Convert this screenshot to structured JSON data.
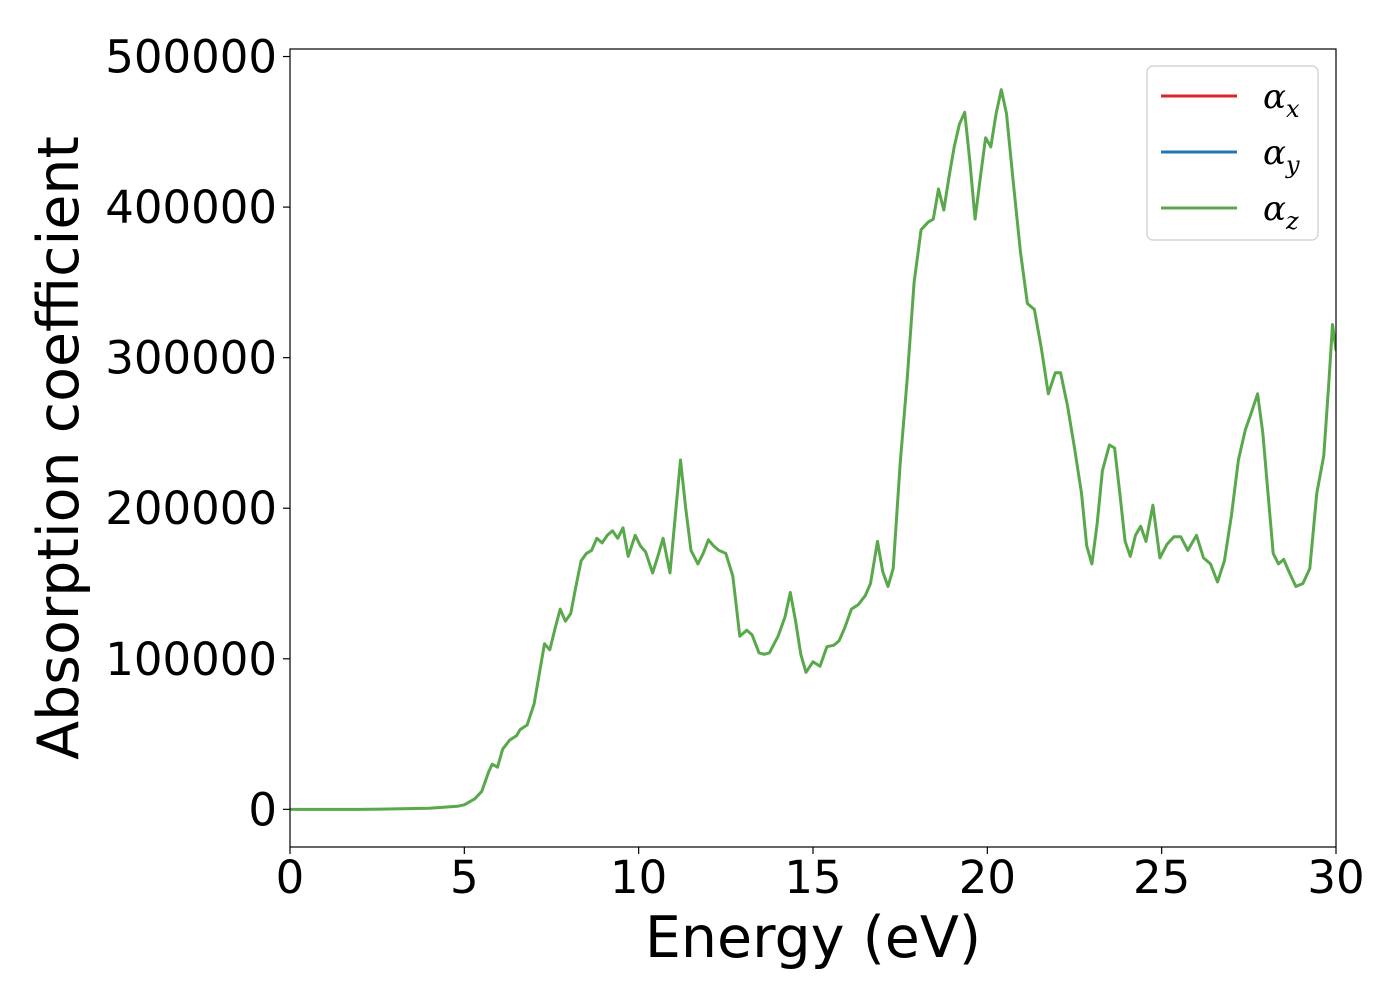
{
  "chart_data": {
    "type": "line",
    "title": "",
    "xlabel": "Energy (eV)",
    "ylabel": "Absorption coefficient",
    "xlim": [
      0,
      30
    ],
    "ylim": [
      -25000,
      505000
    ],
    "xticks": [
      0,
      5,
      10,
      15,
      20,
      25,
      30
    ],
    "yticks": [
      0,
      100000,
      200000,
      300000,
      400000,
      500000
    ],
    "xtick_labels": [
      "0",
      "5",
      "10",
      "15",
      "20",
      "25",
      "30"
    ],
    "ytick_labels": [
      "0",
      "100000",
      "200000",
      "300000",
      "400000",
      "500000"
    ],
    "grid": false,
    "legend_position": "top-right",
    "legend": [
      {
        "symbol": "α",
        "sub": "x",
        "color": "#d62728"
      },
      {
        "symbol": "α",
        "sub": "y",
        "color": "#1f77b4"
      },
      {
        "symbol": "α",
        "sub": "z",
        "color": "#59a84b"
      }
    ],
    "series": [
      {
        "color": "#59a84b",
        "points": [
          [
            0,
            0
          ],
          [
            1,
            0
          ],
          [
            2,
            0
          ],
          [
            3,
            300
          ],
          [
            4,
            800
          ],
          [
            4.8,
            2000
          ],
          [
            5.0,
            3000
          ],
          [
            5.3,
            7000
          ],
          [
            5.5,
            12000
          ],
          [
            5.7,
            25000
          ],
          [
            5.8,
            30000
          ],
          [
            5.95,
            28000
          ],
          [
            6.1,
            40000
          ],
          [
            6.3,
            46000
          ],
          [
            6.5,
            49000
          ],
          [
            6.6,
            53000
          ],
          [
            6.8,
            56000
          ],
          [
            7.0,
            70000
          ],
          [
            7.15,
            90000
          ],
          [
            7.3,
            110000
          ],
          [
            7.45,
            106000
          ],
          [
            7.6,
            120000
          ],
          [
            7.75,
            133000
          ],
          [
            7.9,
            125000
          ],
          [
            8.05,
            130000
          ],
          [
            8.2,
            148000
          ],
          [
            8.35,
            165000
          ],
          [
            8.5,
            170000
          ],
          [
            8.65,
            172000
          ],
          [
            8.8,
            180000
          ],
          [
            8.95,
            177000
          ],
          [
            9.1,
            182000
          ],
          [
            9.25,
            185000
          ],
          [
            9.4,
            180000
          ],
          [
            9.55,
            187000
          ],
          [
            9.7,
            168000
          ],
          [
            9.9,
            182000
          ],
          [
            10.05,
            175000
          ],
          [
            10.2,
            171000
          ],
          [
            10.4,
            157000
          ],
          [
            10.55,
            168000
          ],
          [
            10.7,
            180000
          ],
          [
            10.9,
            157000
          ],
          [
            11.05,
            195000
          ],
          [
            11.2,
            232000
          ],
          [
            11.35,
            200000
          ],
          [
            11.5,
            172000
          ],
          [
            11.7,
            163000
          ],
          [
            11.85,
            170000
          ],
          [
            12.0,
            179000
          ],
          [
            12.15,
            175000
          ],
          [
            12.3,
            172000
          ],
          [
            12.5,
            170000
          ],
          [
            12.7,
            155000
          ],
          [
            12.9,
            115000
          ],
          [
            13.1,
            119000
          ],
          [
            13.25,
            116000
          ],
          [
            13.45,
            104000
          ],
          [
            13.6,
            103000
          ],
          [
            13.75,
            104000
          ],
          [
            14.0,
            115000
          ],
          [
            14.2,
            128000
          ],
          [
            14.35,
            144000
          ],
          [
            14.5,
            125000
          ],
          [
            14.65,
            103000
          ],
          [
            14.8,
            91000
          ],
          [
            15.0,
            98000
          ],
          [
            15.2,
            95000
          ],
          [
            15.4,
            108000
          ],
          [
            15.6,
            109000
          ],
          [
            15.75,
            112000
          ],
          [
            15.9,
            120000
          ],
          [
            16.1,
            133000
          ],
          [
            16.3,
            136000
          ],
          [
            16.5,
            142000
          ],
          [
            16.65,
            150000
          ],
          [
            16.85,
            178000
          ],
          [
            17.0,
            158000
          ],
          [
            17.15,
            148000
          ],
          [
            17.3,
            160000
          ],
          [
            17.5,
            230000
          ],
          [
            17.7,
            285000
          ],
          [
            17.9,
            350000
          ],
          [
            18.1,
            385000
          ],
          [
            18.3,
            390000
          ],
          [
            18.45,
            392000
          ],
          [
            18.6,
            412000
          ],
          [
            18.75,
            398000
          ],
          [
            18.9,
            420000
          ],
          [
            19.05,
            440000
          ],
          [
            19.2,
            455000
          ],
          [
            19.35,
            463000
          ],
          [
            19.5,
            430000
          ],
          [
            19.65,
            392000
          ],
          [
            19.8,
            420000
          ],
          [
            19.95,
            446000
          ],
          [
            20.1,
            440000
          ],
          [
            20.25,
            462000
          ],
          [
            20.4,
            478000
          ],
          [
            20.55,
            462000
          ],
          [
            20.75,
            415000
          ],
          [
            20.95,
            370000
          ],
          [
            21.15,
            336000
          ],
          [
            21.35,
            332000
          ],
          [
            21.55,
            306000
          ],
          [
            21.75,
            276000
          ],
          [
            21.95,
            290000
          ],
          [
            22.1,
            290000
          ],
          [
            22.3,
            268000
          ],
          [
            22.5,
            240000
          ],
          [
            22.7,
            210000
          ],
          [
            22.85,
            175000
          ],
          [
            23.0,
            163000
          ],
          [
            23.15,
            190000
          ],
          [
            23.3,
            225000
          ],
          [
            23.5,
            242000
          ],
          [
            23.65,
            240000
          ],
          [
            23.8,
            210000
          ],
          [
            23.95,
            178000
          ],
          [
            24.1,
            168000
          ],
          [
            24.25,
            182000
          ],
          [
            24.4,
            188000
          ],
          [
            24.55,
            178000
          ],
          [
            24.75,
            202000
          ],
          [
            24.95,
            167000
          ],
          [
            25.15,
            176000
          ],
          [
            25.35,
            181000
          ],
          [
            25.55,
            181000
          ],
          [
            25.75,
            172000
          ],
          [
            26.0,
            182000
          ],
          [
            26.2,
            167000
          ],
          [
            26.4,
            163000
          ],
          [
            26.6,
            151000
          ],
          [
            26.8,
            165000
          ],
          [
            27.0,
            195000
          ],
          [
            27.2,
            232000
          ],
          [
            27.4,
            252000
          ],
          [
            27.55,
            262000
          ],
          [
            27.75,
            276000
          ],
          [
            27.9,
            250000
          ],
          [
            28.05,
            210000
          ],
          [
            28.2,
            170000
          ],
          [
            28.35,
            163000
          ],
          [
            28.5,
            166000
          ],
          [
            28.65,
            158000
          ],
          [
            28.85,
            148000
          ],
          [
            29.05,
            150000
          ],
          [
            29.25,
            160000
          ],
          [
            29.45,
            210000
          ],
          [
            29.65,
            235000
          ],
          [
            29.8,
            285000
          ],
          [
            29.9,
            322000
          ],
          [
            30.0,
            305000
          ]
        ]
      }
    ]
  }
}
